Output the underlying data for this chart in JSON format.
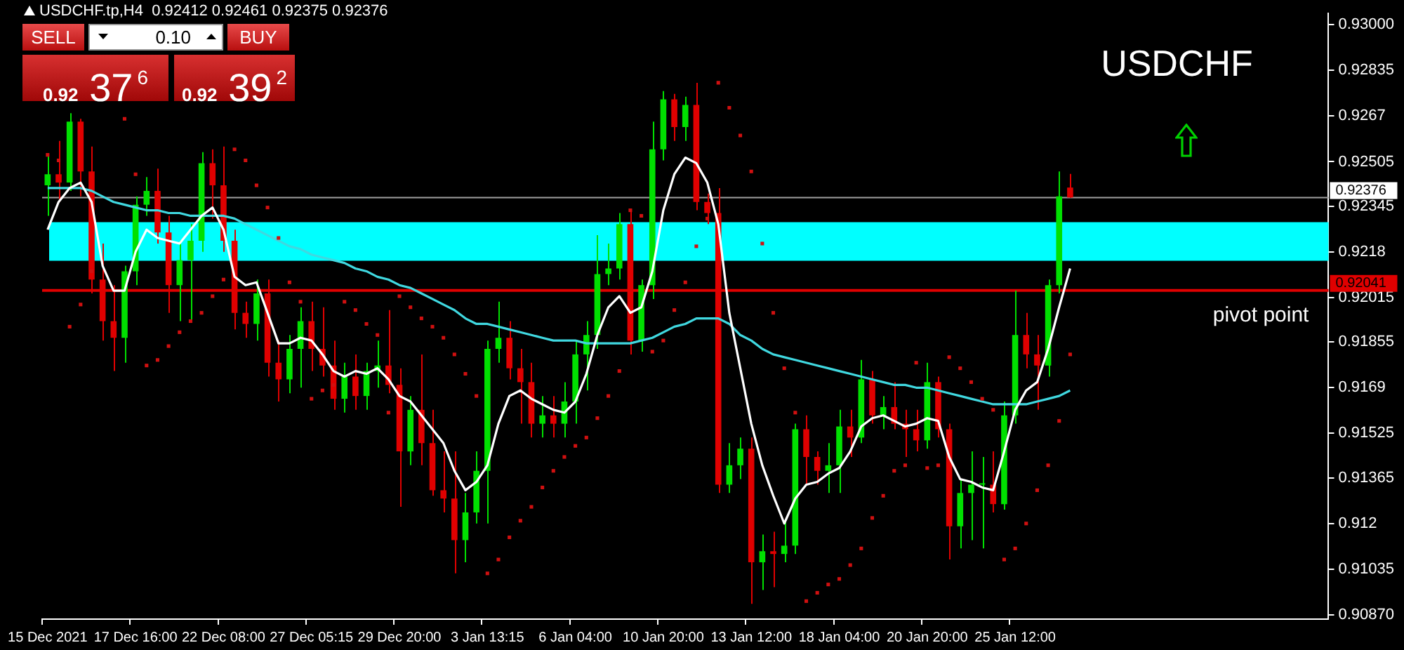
{
  "chart_data": {
    "type": "candlestick",
    "title": "USDCHF",
    "subtitle": "USDCHF.tp,H4  0.92412 0.92461 0.92375 0.92376",
    "categories": [
      "15 Dec 2021",
      null,
      null,
      null,
      null,
      null,
      null,
      null,
      "17 Dec 16:00",
      null,
      null,
      null,
      null,
      null,
      null,
      null,
      "22 Dec 08:00",
      null,
      null,
      null,
      null,
      null,
      null,
      null,
      "27 Dec 05:15",
      null,
      null,
      null,
      null,
      null,
      null,
      null,
      "29 Dec 20:00",
      null,
      null,
      null,
      null,
      null,
      null,
      null,
      "3 Jan 13:15",
      null,
      null,
      null,
      null,
      null,
      null,
      null,
      "6 Jan 04:00",
      null,
      null,
      null,
      null,
      null,
      null,
      null,
      "10 Jan 20:00",
      null,
      null,
      null,
      null,
      null,
      null,
      null,
      "13 Jan 12:00",
      null,
      null,
      null,
      null,
      null,
      null,
      null,
      "18 Jan 04:00",
      null,
      null,
      null,
      null,
      null,
      null,
      null,
      "20 Jan 20:00",
      null,
      null,
      null,
      null,
      null,
      null,
      null,
      "25 Jan 12:00",
      null,
      null,
      null,
      null,
      null
    ],
    "ohlc": [
      [
        0.9242,
        0.9253,
        0.9231,
        0.9246
      ],
      [
        0.9246,
        0.9258,
        0.9236,
        0.9243
      ],
      [
        0.9243,
        0.9268,
        0.924,
        0.9265
      ],
      [
        0.9265,
        0.9266,
        0.9238,
        0.9247
      ],
      [
        0.9247,
        0.9256,
        0.9203,
        0.9208
      ],
      [
        0.9208,
        0.9221,
        0.9186,
        0.9193
      ],
      [
        0.9193,
        0.9206,
        0.9175,
        0.9187
      ],
      [
        0.9187,
        0.9213,
        0.9178,
        0.9211
      ],
      [
        0.9211,
        0.9238,
        0.9206,
        0.9235
      ],
      [
        0.9235,
        0.9245,
        0.9231,
        0.924
      ],
      [
        0.924,
        0.9248,
        0.9221,
        0.9225
      ],
      [
        0.9225,
        0.9231,
        0.9196,
        0.9206
      ],
      [
        0.9206,
        0.9222,
        0.9193,
        0.9215
      ],
      [
        0.9215,
        0.9228,
        0.9193,
        0.9222
      ],
      [
        0.9222,
        0.9254,
        0.9218,
        0.925
      ],
      [
        0.925,
        0.9255,
        0.923,
        0.9242
      ],
      [
        0.9242,
        0.9256,
        0.9218,
        0.9222
      ],
      [
        0.9222,
        0.9226,
        0.919,
        0.9196
      ],
      [
        0.9196,
        0.92,
        0.9187,
        0.9192
      ],
      [
        0.9192,
        0.9208,
        0.9186,
        0.9203
      ],
      [
        0.9203,
        0.9208,
        0.9173,
        0.9178
      ],
      [
        0.9178,
        0.9186,
        0.9164,
        0.9172
      ],
      [
        0.9172,
        0.9188,
        0.9167,
        0.9183
      ],
      [
        0.9183,
        0.9198,
        0.9169,
        0.9193
      ],
      [
        0.9193,
        0.92,
        0.9175,
        0.9183
      ],
      [
        0.9183,
        0.9198,
        0.9173,
        0.9177
      ],
      [
        0.9177,
        0.9186,
        0.9161,
        0.9165
      ],
      [
        0.9165,
        0.9178,
        0.916,
        0.9173
      ],
      [
        0.9173,
        0.9181,
        0.9161,
        0.9166
      ],
      [
        0.9166,
        0.9178,
        0.9161,
        0.9175
      ],
      [
        0.9175,
        0.9186,
        0.9169,
        0.9177
      ],
      [
        0.9177,
        0.9197,
        0.9167,
        0.917
      ],
      [
        0.917,
        0.9176,
        0.9126,
        0.9146
      ],
      [
        0.9146,
        0.9166,
        0.9141,
        0.9161
      ],
      [
        0.9161,
        0.9181,
        0.9141,
        0.9149
      ],
      [
        0.9149,
        0.9161,
        0.913,
        0.9132
      ],
      [
        0.9132,
        0.9146,
        0.9124,
        0.9129
      ],
      [
        0.9129,
        0.9146,
        0.9102,
        0.9114
      ],
      [
        0.9114,
        0.9131,
        0.9106,
        0.9124
      ],
      [
        0.9124,
        0.9146,
        0.912,
        0.9139
      ],
      [
        0.9139,
        0.9186,
        0.912,
        0.9183
      ],
      [
        0.9183,
        0.92,
        0.9178,
        0.9187
      ],
      [
        0.9187,
        0.9193,
        0.9172,
        0.9176
      ],
      [
        0.9176,
        0.9183,
        0.9156,
        0.9171
      ],
      [
        0.9171,
        0.9178,
        0.9151,
        0.9156
      ],
      [
        0.9156,
        0.9166,
        0.9151,
        0.9159
      ],
      [
        0.9159,
        0.9166,
        0.9151,
        0.9156
      ],
      [
        0.9156,
        0.9171,
        0.9151,
        0.9164
      ],
      [
        0.9164,
        0.9186,
        0.9156,
        0.9181
      ],
      [
        0.9181,
        0.9193,
        0.9168,
        0.9188
      ],
      [
        0.9188,
        0.9224,
        0.9183,
        0.921
      ],
      [
        0.921,
        0.9221,
        0.9206,
        0.9212
      ],
      [
        0.9212,
        0.9232,
        0.9208,
        0.9228
      ],
      [
        0.9228,
        0.9233,
        0.9181,
        0.9186
      ],
      [
        0.9186,
        0.9208,
        0.9182,
        0.9206
      ],
      [
        0.9206,
        0.9265,
        0.9201,
        0.9255
      ],
      [
        0.9255,
        0.9276,
        0.9251,
        0.9273
      ],
      [
        0.9273,
        0.9275,
        0.9258,
        0.9263
      ],
      [
        0.9263,
        0.9274,
        0.9258,
        0.9271
      ],
      [
        0.9271,
        0.9279,
        0.9233,
        0.9236
      ],
      [
        0.9236,
        0.9239,
        0.9228,
        0.9232
      ],
      [
        0.9232,
        0.9241,
        0.9131,
        0.9134
      ],
      [
        0.9134,
        0.9149,
        0.9131,
        0.9141
      ],
      [
        0.9141,
        0.9151,
        0.9136,
        0.9147
      ],
      [
        0.9147,
        0.9151,
        0.9091,
        0.9106
      ],
      [
        0.9106,
        0.9116,
        0.9096,
        0.911
      ],
      [
        0.911,
        0.9117,
        0.9097,
        0.9109
      ],
      [
        0.9109,
        0.9121,
        0.9106,
        0.9112
      ],
      [
        0.9112,
        0.9156,
        0.9109,
        0.9154
      ],
      [
        0.9154,
        0.9159,
        0.9134,
        0.9144
      ],
      [
        0.9144,
        0.9146,
        0.9134,
        0.9139
      ],
      [
        0.9139,
        0.9149,
        0.9131,
        0.9141
      ],
      [
        0.9141,
        0.9161,
        0.9131,
        0.9155
      ],
      [
        0.9155,
        0.9161,
        0.9144,
        0.9151
      ],
      [
        0.9151,
        0.9179,
        0.9149,
        0.9172
      ],
      [
        0.9172,
        0.9175,
        0.9156,
        0.9159
      ],
      [
        0.9159,
        0.9166,
        0.9154,
        0.9162
      ],
      [
        0.9162,
        0.9171,
        0.9154,
        0.9156
      ],
      [
        0.9156,
        0.9161,
        0.9144,
        0.9154
      ],
      [
        0.9154,
        0.9161,
        0.9146,
        0.915
      ],
      [
        0.915,
        0.9178,
        0.9147,
        0.9171
      ],
      [
        0.9171,
        0.9173,
        0.9151,
        0.9154
      ],
      [
        0.9154,
        0.9156,
        0.9107,
        0.9119
      ],
      [
        0.9119,
        0.9136,
        0.9111,
        0.9131
      ],
      [
        0.9131,
        0.9146,
        0.9114,
        0.9134
      ],
      [
        0.9134,
        0.9144,
        0.9111,
        0.9134
      ],
      [
        0.9134,
        0.9146,
        0.9124,
        0.9127
      ],
      [
        0.9127,
        0.9164,
        0.9125,
        0.9159
      ],
      [
        0.9159,
        0.9204,
        0.9156,
        0.9188
      ],
      [
        0.9188,
        0.9196,
        0.9176,
        0.9181
      ],
      [
        0.9181,
        0.9188,
        0.9161,
        0.9177
      ],
      [
        0.9177,
        0.9208,
        0.9173,
        0.9206
      ],
      [
        0.9206,
        0.9247,
        0.9203,
        0.9238
      ],
      [
        0.92412,
        0.92461,
        0.92375,
        0.92376
      ]
    ],
    "series": [
      {
        "type": "line",
        "color": "#ffffff",
        "marker": "none",
        "line_style": "solid",
        "values": [
          0.9226,
          0.9236,
          0.9241,
          0.9243,
          0.9236,
          0.9213,
          0.9204,
          0.9204,
          0.9218,
          0.9226,
          0.9223,
          0.9222,
          0.9221,
          0.9226,
          0.9231,
          0.9234,
          0.9226,
          0.9209,
          0.9206,
          0.9207,
          0.9196,
          0.9185,
          0.9185,
          0.9187,
          0.9186,
          0.9181,
          0.9175,
          0.9173,
          0.9175,
          0.9174,
          0.9176,
          0.9172,
          0.9166,
          0.9164,
          0.9159,
          0.9154,
          0.9149,
          0.9139,
          0.9132,
          0.9135,
          0.9141,
          0.9156,
          0.9166,
          0.9168,
          0.9165,
          0.9163,
          0.9161,
          0.916,
          0.9164,
          0.9174,
          0.9188,
          0.9198,
          0.9202,
          0.9196,
          0.9198,
          0.9211,
          0.9233,
          0.9246,
          0.9252,
          0.925,
          0.9243,
          0.9228,
          0.9196,
          0.9176,
          0.9156,
          0.9141,
          0.913,
          0.912,
          0.9129,
          0.9134,
          0.9135,
          0.9138,
          0.914,
          0.9146,
          0.9155,
          0.9158,
          0.9159,
          0.9157,
          0.9155,
          0.9156,
          0.9158,
          0.9157,
          0.9144,
          0.9136,
          0.9135,
          0.9133,
          0.9132,
          0.9146,
          0.9161,
          0.9168,
          0.9171,
          0.9183,
          0.9198,
          0.9212
        ]
      },
      {
        "type": "line",
        "color": "#40d8e0",
        "marker": "none",
        "line_style": "solid",
        "values": [
          0.9241,
          0.9241,
          0.9241,
          0.9241,
          0.924,
          0.9238,
          0.9236,
          0.9235,
          0.9234,
          0.9233,
          0.9233,
          0.9232,
          0.9232,
          0.9231,
          0.9231,
          0.9231,
          0.9231,
          0.923,
          0.9228,
          0.9226,
          0.9224,
          0.9222,
          0.922,
          0.9219,
          0.9217,
          0.9216,
          0.9215,
          0.9214,
          0.9212,
          0.9211,
          0.9209,
          0.9208,
          0.9206,
          0.9205,
          0.9203,
          0.9201,
          0.9199,
          0.9197,
          0.9194,
          0.9192,
          0.9192,
          0.9191,
          0.919,
          0.9189,
          0.9188,
          0.9187,
          0.9186,
          0.9186,
          0.9186,
          0.9185,
          0.9185,
          0.9185,
          0.9185,
          0.9185,
          0.9186,
          0.9187,
          0.9189,
          0.9191,
          0.9192,
          0.9194,
          0.9194,
          0.9194,
          0.9192,
          0.9188,
          0.9186,
          0.9183,
          0.9181,
          0.918,
          0.9179,
          0.9178,
          0.9177,
          0.9176,
          0.9175,
          0.9174,
          0.9173,
          0.9172,
          0.9171,
          0.917,
          0.917,
          0.9169,
          0.9169,
          0.9168,
          0.9167,
          0.9166,
          0.9165,
          0.9164,
          0.9163,
          0.9163,
          0.9163,
          0.9163,
          0.9164,
          0.9165,
          0.9166,
          0.9168
        ]
      },
      {
        "type": "scatter",
        "color": "#d01010",
        "marker": "square",
        "values": [
          0.9253,
          0.9251,
          0.9191,
          0.9199,
          0.9211,
          null,
          null,
          0.9266,
          0.9246,
          0.9177,
          0.9179,
          0.9184,
          0.9189,
          0.9193,
          0.9196,
          0.9202,
          0.9208,
          0.9255,
          0.9251,
          0.9242,
          0.9234,
          0.9223,
          0.9207,
          0.92,
          0.9165,
          0.9168,
          0.917,
          0.92,
          0.9197,
          0.9192,
          0.9188,
          0.916,
          0.9202,
          0.9198,
          0.9194,
          0.9191,
          0.9187,
          0.9181,
          0.9174,
          0.9166,
          0.9102,
          0.9107,
          0.9115,
          0.9121,
          0.9126,
          0.9133,
          0.9139,
          0.9144,
          0.9148,
          0.9151,
          0.9158,
          0.9166,
          0.9175,
          0.9233,
          0.9231,
          0.9182,
          0.9186,
          0.9197,
          0.9207,
          0.922,
          0.923,
          0.9279,
          0.927,
          0.926,
          0.9247,
          0.9221,
          0.9196,
          0.9176,
          0.916,
          0.9092,
          0.9095,
          0.9098,
          0.91,
          0.9105,
          0.9111,
          0.9122,
          0.913,
          0.9139,
          0.9141,
          0.9178,
          0.914,
          0.9141,
          0.918,
          0.9176,
          0.9171,
          0.9165,
          0.9161,
          0.9107,
          0.9111,
          0.912,
          0.9132,
          0.9141,
          0.9157,
          0.9181
        ]
      }
    ],
    "ylim": [
      0.90855,
      0.9304
    ],
    "yticks": [
      {
        "value": 0.93,
        "label": "0.93000"
      },
      0.92835,
      0.9267,
      0.92505,
      0.92345,
      0.9218,
      0.92015,
      0.91855,
      0.9169,
      0.91525,
      0.91365,
      0.912,
      0.91035,
      {
        "value": 0.9087,
        "label": "0.90870"
      }
    ],
    "ref_lines": [
      {
        "axis": "y",
        "value": 0.92376,
        "label": "0.92376",
        "color": "#a0a0a0"
      },
      {
        "axis": "y",
        "value": 0.92041,
        "label": "0.92041",
        "color": "#e00000"
      }
    ],
    "bands": [
      {
        "axis": "y",
        "from": 0.92148,
        "to": 0.92287,
        "color": "#00ffff"
      }
    ],
    "annotations": [
      {
        "text": "pivot point",
        "y": 0.92041
      },
      "SELL",
      "0.10",
      "BUY",
      "0.92 37$^{6}$",
      "0.92 39$^{2}$"
    ],
    "legend": false
  }
}
